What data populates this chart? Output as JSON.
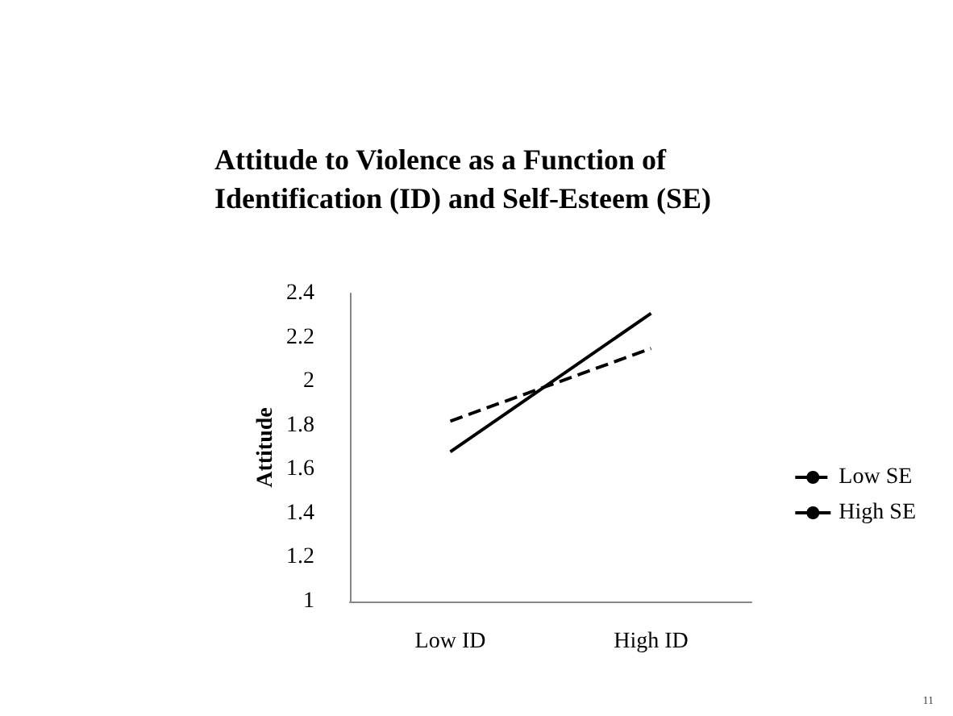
{
  "chart_data": {
    "type": "line",
    "title": "Attitude to Violence as a Function of\nIdentification (ID) and Self-Esteem (SE)",
    "ylabel": "Attitude",
    "categories": [
      "Low ID",
      "High ID"
    ],
    "series": [
      {
        "name": "Low SE",
        "color": "#000000",
        "values": [
          1.82,
          2.15
        ],
        "line_style": "dashed"
      },
      {
        "name": "High SE",
        "color": "#000000",
        "values": [
          1.68,
          2.31
        ],
        "line_style": "solid"
      }
    ],
    "ylim": [
      1,
      2.4
    ],
    "yticks": [
      1,
      1.2,
      1.4,
      1.6,
      1.8,
      2,
      2.2,
      2.4
    ],
    "grid": false,
    "legend": "right",
    "marker": "none",
    "annotations": [
      "11"
    ]
  }
}
